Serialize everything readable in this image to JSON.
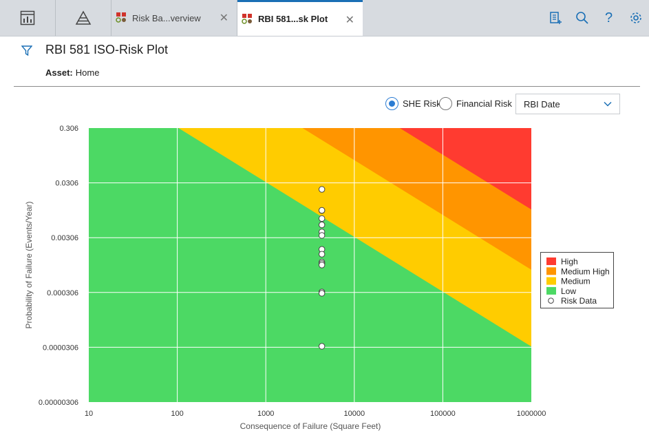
{
  "tabs": [
    {
      "label": "Risk Ba...verview",
      "active": false
    },
    {
      "label": "RBI 581...sk Plot",
      "active": true
    }
  ],
  "toolbar_icons": [
    "dashboard-icon",
    "pyramid-icon",
    "new-record-icon",
    "search-icon",
    "help-icon",
    "settings-icon"
  ],
  "page": {
    "title": "RBI 581 ISO-Risk Plot",
    "asset_label": "Asset:",
    "asset_value": "Home"
  },
  "controls": {
    "radio_she": "SHE Risk",
    "radio_financial": "Financial Risk",
    "selected_radio": "SHE Risk",
    "dropdown_value": "RBI Date"
  },
  "legend": [
    {
      "label": "High",
      "color": "#ff3b30"
    },
    {
      "label": "Medium High",
      "color": "#ff9500"
    },
    {
      "label": "Medium",
      "color": "#ffcc00"
    },
    {
      "label": "Low",
      "color": "#4cd964"
    },
    {
      "label": "Risk Data",
      "color": "#ffffff"
    }
  ],
  "chart_data": {
    "type": "scatter",
    "xlabel": "Consequence of Failure (Square Feet)",
    "ylabel": "Probability of Failure (Events/Year)",
    "x_scale": "log",
    "y_scale": "log",
    "xlim": [
      10,
      1000000
    ],
    "ylim": [
      3.06e-06,
      0.306
    ],
    "x_ticks": [
      "10",
      "100",
      "1000",
      "10000",
      "100000",
      "1000000"
    ],
    "y_ticks": [
      "0.306",
      "0.0306",
      "0.00306",
      "0.000306",
      "0.0000306",
      "0.00000306"
    ],
    "grid": true,
    "legend_position": "right",
    "regions": [
      {
        "name": "High",
        "color": "#ff3b30",
        "lower_boundary_log_product": 4.0
      },
      {
        "name": "Medium High",
        "color": "#ff9500",
        "lower_boundary_log_product": 2.9
      },
      {
        "name": "Medium",
        "color": "#ffcc00",
        "lower_boundary_log_product": 1.5
      },
      {
        "name": "Low",
        "color": "#4cd964",
        "lower_boundary_log_product": null
      }
    ],
    "series": [
      {
        "name": "Risk Data",
        "x": [
          4300,
          4300,
          4300,
          4300,
          4300,
          4300,
          4300,
          4300,
          4300,
          4300,
          4300,
          4300,
          4300,
          4300,
          4300
        ],
        "y": [
          0.0233,
          0.00958,
          0.00966,
          0.00684,
          0.00524,
          0.00389,
          0.00336,
          0.00187,
          0.00153,
          0.00109,
          0.00103,
          0.00097,
          0.000312,
          0.000296,
          3.19e-05
        ]
      }
    ]
  }
}
